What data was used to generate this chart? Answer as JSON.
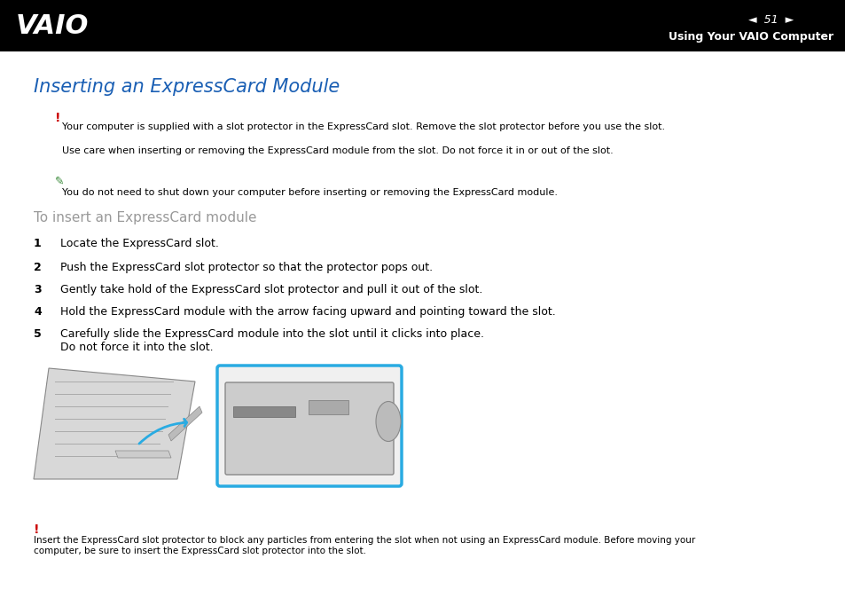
{
  "bg_color": "#ffffff",
  "header_bg": "#000000",
  "header_text_right": "Using Your VAIO Computer",
  "header_page_num": "51",
  "title": "Inserting an ExpressCard Module",
  "title_color": "#1a5fb4",
  "warning_icon_color": "#cc0000",
  "note_icon_color": "#3a8a3a",
  "warning1_text": "Your computer is supplied with a slot protector in the ExpressCard slot. Remove the slot protector before you use the slot.",
  "warning2_text": "Use care when inserting or removing the ExpressCard module from the slot. Do not force it in or out of the slot.",
  "note_text": "You do not need to shut down your computer before inserting or removing the ExpressCard module.",
  "subtitle": "To insert an ExpressCard module",
  "subtitle_color": "#999999",
  "steps": [
    {
      "num": "1",
      "text": "Locate the ExpressCard slot."
    },
    {
      "num": "2",
      "text": "Push the ExpressCard slot protector so that the protector pops out."
    },
    {
      "num": "3",
      "text": "Gently take hold of the ExpressCard slot protector and pull it out of the slot."
    },
    {
      "num": "4",
      "text": "Hold the ExpressCard module with the arrow facing upward and pointing toward the slot."
    },
    {
      "num": "5",
      "text": "Carefully slide the ExpressCard module into the slot until it clicks into place.\nDo not force it into the slot."
    }
  ],
  "footer_text": "Insert the ExpressCard slot protector to block any particles from entering the slot when not using an ExpressCard module. Before moving your\ncomputer, be sure to insert the ExpressCard slot protector into the slot.",
  "cyan_color": "#29abe2"
}
